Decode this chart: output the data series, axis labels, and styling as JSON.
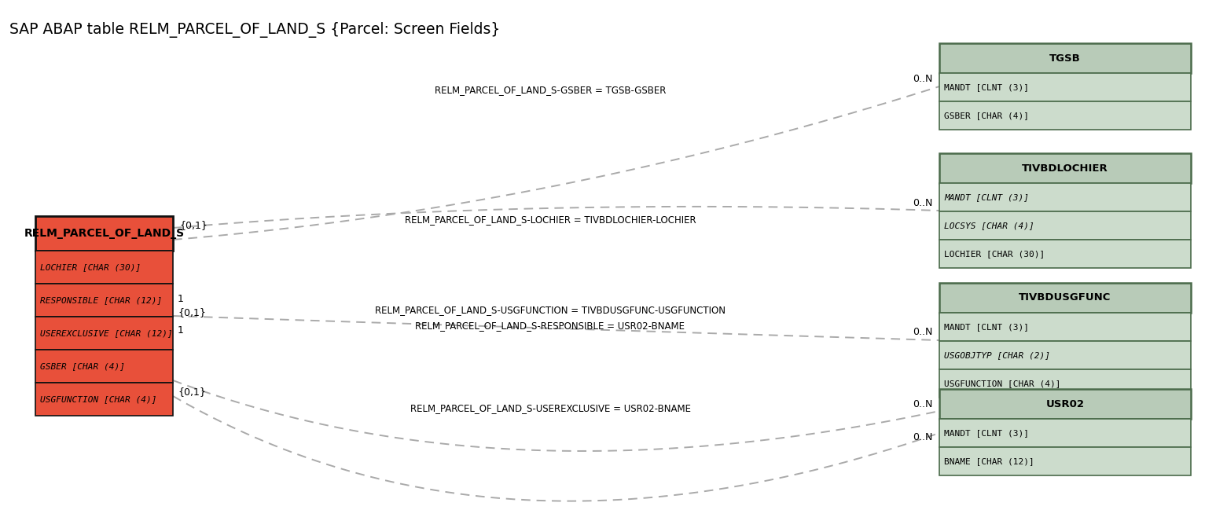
{
  "title": "SAP ABAP table RELM_PARCEL_OF_LAND_S {Parcel: Screen Fields}",
  "bg_color": "#ffffff",
  "main_table": {
    "name": "RELM_PARCEL_OF_LAND_S",
    "fields": [
      "LOCHIER [CHAR (30)]",
      "RESPONSIBLE [CHAR (12)]",
      "USEREXCLUSIVE [CHAR (12)]",
      "GSBER [CHAR (4)]",
      "USGFUNCTION [CHAR (4)]"
    ],
    "field_italic": [
      true,
      true,
      true,
      true,
      true
    ],
    "header_color": "#e8503a",
    "row_color": "#e8503a",
    "border_color": "#111111"
  },
  "related_tables": [
    {
      "name": "TGSB",
      "fields": [
        "MANDT [CLNT (3)]",
        "GSBER [CHAR (4)]"
      ],
      "field_italic": [
        false,
        false
      ],
      "field_underline": [
        true,
        true
      ],
      "header_color": "#b8cbb8",
      "row_color": "#ccdccc",
      "border_color": "#4a6a4a"
    },
    {
      "name": "TIVBDLOCHIER",
      "fields": [
        "MANDT [CLNT (3)]",
        "LOCSYS [CHAR (4)]",
        "LOCHIER [CHAR (30)]"
      ],
      "field_italic": [
        true,
        true,
        false
      ],
      "field_underline": [
        true,
        true,
        true
      ],
      "header_color": "#b8cbb8",
      "row_color": "#ccdccc",
      "border_color": "#4a6a4a"
    },
    {
      "name": "TIVBDUSGFUNC",
      "fields": [
        "MANDT [CLNT (3)]",
        "USGOBJTYP [CHAR (2)]",
        "USGFUNCTION [CHAR (4)]"
      ],
      "field_italic": [
        false,
        true,
        false
      ],
      "field_underline": [
        true,
        true,
        true
      ],
      "header_color": "#b8cbb8",
      "row_color": "#ccdccc",
      "border_color": "#4a6a4a"
    },
    {
      "name": "USR02",
      "fields": [
        "MANDT [CLNT (3)]",
        "BNAME [CHAR (12)]"
      ],
      "field_italic": [
        false,
        false
      ],
      "field_underline": [
        true,
        true
      ],
      "header_color": "#b8cbb8",
      "row_color": "#ccdccc",
      "border_color": "#4a6a4a"
    }
  ],
  "conn_labels": [
    "RELM_PARCEL_OF_LAND_S-GSBER = TGSB-GSBER",
    "RELM_PARCEL_OF_LAND_S-LOCHIER = TIVBDLOCHIER-LOCHIER",
    "RELM_PARCEL_OF_LAND_S-USGFUNCTION = TIVBDUSGFUNC-USGFUNCTION",
    "RELM_PARCEL_OF_LAND_S-RESPONSIBLE = USR02-BNAME",
    "RELM_PARCEL_OF_LAND_S-USEREXCLUSIVE = USR02-BNAME"
  ],
  "dash_color": "#aaaaaa"
}
